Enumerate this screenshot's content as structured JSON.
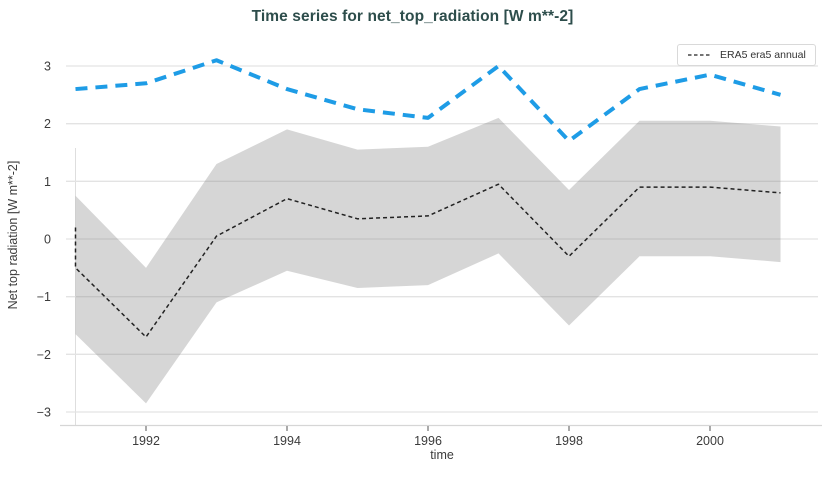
{
  "title": "Time series for net_top_radiation [W m**-2]",
  "legend": {
    "label": "ERA5 era5 annual"
  },
  "axes": {
    "x_label": "time",
    "y_label": "Net top radiation [W m**-2]"
  },
  "colors": {
    "title_text": "#2d4d4b",
    "blue_line": "#1e9ce6",
    "annual_line": "#222222",
    "band_fill": "rgba(130,130,130,0.33)",
    "gridline": "#e3e3e3",
    "axis_line": "#d6d6d6",
    "tick_text": "#3c3c3c"
  },
  "chart_data": {
    "type": "line",
    "title": "Time series for net_top_radiation [W m**-2]",
    "xlabel": "time",
    "ylabel": "Net top radiation [W m**-2]",
    "xlim": [
      1990.87,
      2001.53
    ],
    "ylim": [
      -3.25,
      3.25
    ],
    "grid": true,
    "legend_position": "top-right",
    "vline_x": 1991,
    "xticks": {
      "values": [
        1992,
        1994,
        1996,
        1998,
        2000
      ],
      "labels": [
        "1992",
        "1994",
        "1996",
        "1998",
        "2000"
      ]
    },
    "yticks": {
      "values": [
        3,
        2,
        1,
        0,
        -1,
        -2,
        -3
      ],
      "labels": [
        "3",
        "2",
        "1",
        "0",
        "−1",
        "−2",
        "−3"
      ]
    },
    "series": [
      {
        "name": "unlabeled blue dashed series",
        "x": [
          1991,
          1992,
          1993,
          1994,
          1995,
          1996,
          1997,
          1998,
          1999,
          2000,
          2001
        ],
        "y": [
          2.6,
          2.7,
          3.1,
          2.6,
          2.25,
          2.1,
          3.0,
          1.7,
          2.6,
          2.85,
          2.5
        ],
        "style": {
          "color": "#1e9ce6",
          "dash": [
            12,
            8
          ],
          "width": 4
        }
      },
      {
        "name": "ERA5 era5 annual",
        "x": [
          1991,
          1991,
          1992,
          1993,
          1994,
          1995,
          1996,
          1997,
          1998,
          1999,
          2000,
          2001
        ],
        "y": [
          0.2,
          -0.5,
          -1.7,
          0.05,
          0.7,
          0.35,
          0.4,
          0.95,
          -0.3,
          0.9,
          0.9,
          0.8
        ],
        "style": {
          "color": "#222222",
          "dash": [
            4,
            3
          ],
          "width": 1.5
        }
      },
      {
        "name": "uncertainty band",
        "type": "band",
        "x": [
          1991,
          1992,
          1993,
          1994,
          1995,
          1996,
          1997,
          1998,
          1999,
          2000,
          2001
        ],
        "upper": [
          0.75,
          -0.5,
          1.3,
          1.9,
          1.55,
          1.6,
          2.1,
          0.85,
          2.05,
          2.05,
          1.95
        ],
        "lower": [
          -1.65,
          -2.85,
          -1.1,
          -0.55,
          -0.85,
          -0.8,
          -0.25,
          -1.5,
          -0.3,
          -0.3,
          -0.4
        ],
        "style": {
          "fill": "rgba(130,130,130,0.33)"
        }
      }
    ]
  }
}
